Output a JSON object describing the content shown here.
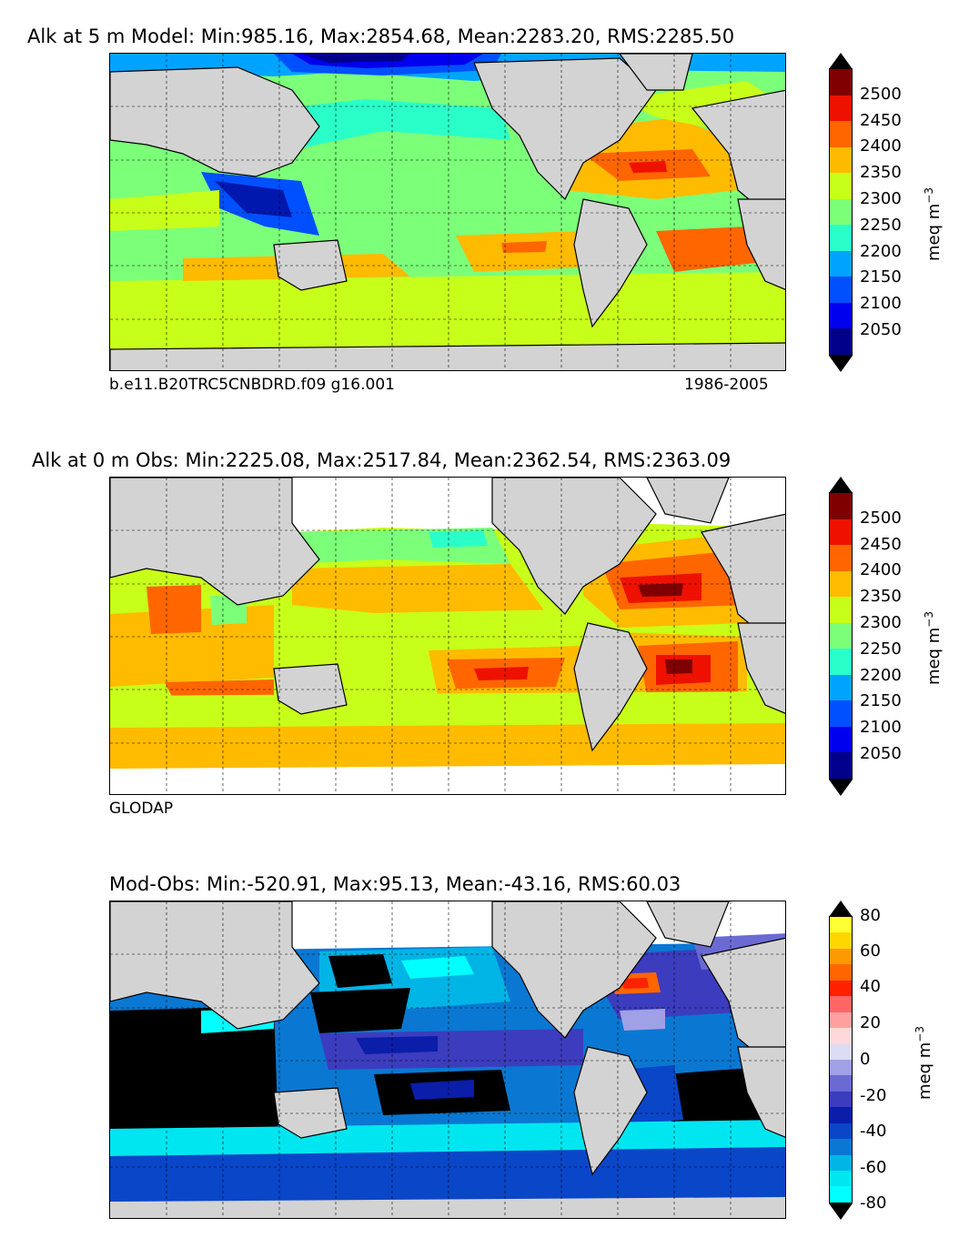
{
  "panels": [
    {
      "title": "Alk at 5 m Model: Min:985.16, Max:2854.68, Mean:2283.20, RMS:2285.50",
      "left_label": "b.e11.B20TRC5CNBDRD.f09 g16.001",
      "right_label": "1986-2005",
      "unit": "meq m",
      "unit_exp": "−3",
      "ticks": [
        "2500",
        "2450",
        "2400",
        "2350",
        "2300",
        "2250",
        "2200",
        "2150",
        "2100",
        "2050"
      ],
      "colors": [
        "#7f0000",
        "#ee1100",
        "#ff6600",
        "#ffbb00",
        "#c8ff1a",
        "#7cff79",
        "#2affc9",
        "#00a4ff",
        "#0050ff",
        "#0000ee",
        "#00008b"
      ]
    },
    {
      "title": "Alk at 0 m Obs: Min:2225.08, Max:2517.84, Mean:2362.54, RMS:2363.09",
      "left_label": "GLODAP",
      "right_label": "",
      "unit": "meq m",
      "unit_exp": "−3",
      "ticks": [
        "2500",
        "2450",
        "2400",
        "2350",
        "2300",
        "2250",
        "2200",
        "2150",
        "2100",
        "2050"
      ],
      "colors": [
        "#7f0000",
        "#ee1100",
        "#ff6600",
        "#ffbb00",
        "#c8ff1a",
        "#7cff79",
        "#2affc9",
        "#00a4ff",
        "#0050ff",
        "#0000ee",
        "#00008b"
      ]
    },
    {
      "title": "Mod-Obs: Min:-520.91, Max:95.13, Mean:-43.16, RMS:60.03",
      "left_label": "",
      "right_label": "",
      "unit": "meq m",
      "unit_exp": "−3",
      "ticks": [
        "80",
        "60",
        "40",
        "20",
        "0",
        "-20",
        "-40",
        "-60",
        "-80"
      ],
      "colors": [
        "#ffff33",
        "#ffd700",
        "#ff9900",
        "#ff6600",
        "#ff2200",
        "#ff6666",
        "#ffa0a0",
        "#ffd9d9",
        "#dcdcf5",
        "#a0a0e6",
        "#6a6ad2",
        "#3c3cbe",
        "#0a1eaa",
        "#0a46c8",
        "#0a78d2",
        "#00b4e6",
        "#00e6f0",
        "#00ffff"
      ]
    }
  ],
  "map_colors": {
    "land": "#d3d3d3",
    "coast": "#000000",
    "grid": "#000000",
    "no_data": "#ffffff"
  }
}
